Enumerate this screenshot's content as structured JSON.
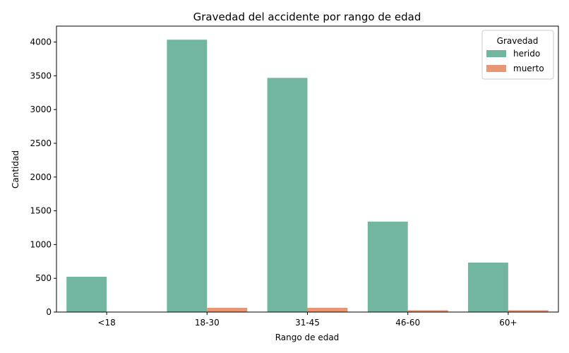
{
  "chart_data": {
    "type": "bar",
    "title": "Gravedad del accidente por rango de edad",
    "xlabel": "Rango de edad",
    "ylabel": "Cantidad",
    "categories": [
      "<18",
      "18-30",
      "31-45",
      "46-60",
      "60+"
    ],
    "series": [
      {
        "name": "herido",
        "color": "#72b6a1",
        "values": [
          523,
          4035,
          3469,
          1340,
          733
        ]
      },
      {
        "name": "muerto",
        "color": "#e99675",
        "values": [
          5,
          63,
          63,
          27,
          27
        ]
      }
    ],
    "ylim": [
      0,
      4236
    ],
    "yticks": [
      0,
      500,
      1000,
      1500,
      2000,
      2500,
      3000,
      3500,
      4000
    ],
    "legend": {
      "title": "Gravedad",
      "position": "top-right"
    },
    "grid": false
  }
}
